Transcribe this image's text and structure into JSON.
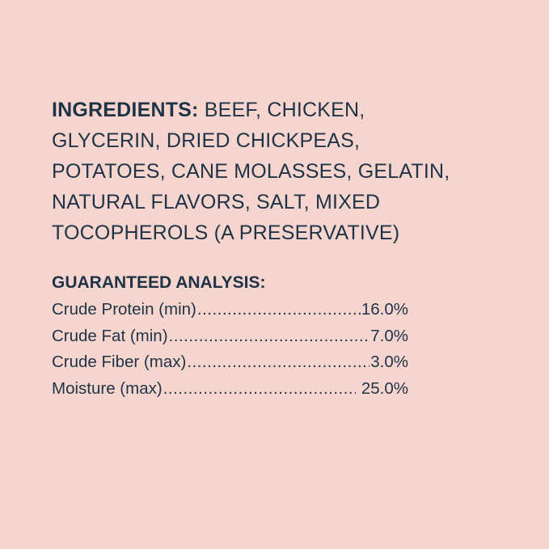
{
  "ingredients": {
    "heading": "INGREDIENTS:",
    "lines": [
      " BEEF, CHICKEN,",
      "GLYCERIN, DRIED CHICKPEAS,",
      "POTATOES, CANE MOLASSES, GELATIN,",
      "NATURAL FLAVORS, SALT, MIXED",
      "TOCOPHEROLS (A PRESERVATIVE)"
    ]
  },
  "analysis": {
    "heading": "GUARANTEED ANALYSIS:",
    "rows": [
      {
        "label": "Crude Protein (min)",
        "value": "16.0%"
      },
      {
        "label": "Crude Fat (min)",
        "value": "7.0%"
      },
      {
        "label": "Crude Fiber (max)",
        "value": "3.0%"
      },
      {
        "label": "Moisture (max)",
        "value": " 25.0%"
      }
    ]
  },
  "colors": {
    "background": "#f6d5cf",
    "text": "#1f3346"
  }
}
